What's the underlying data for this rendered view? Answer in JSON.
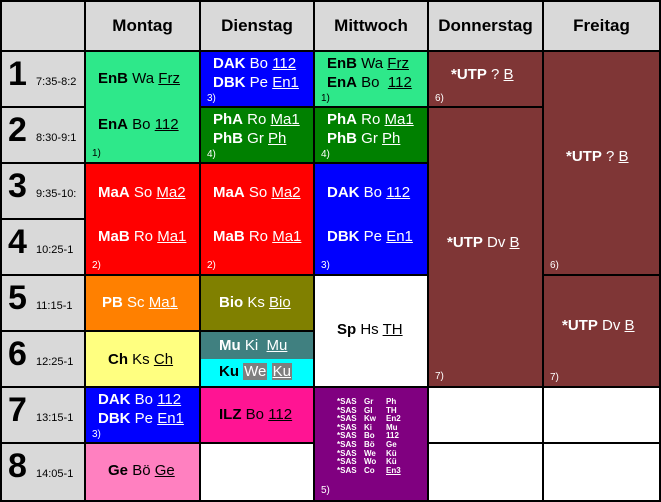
{
  "days": [
    "Montag",
    "Dienstag",
    "Mittwoch",
    "Donnerstag",
    "Freitag"
  ],
  "periods": [
    {
      "num": "1",
      "time": "7:35-8:2"
    },
    {
      "num": "2",
      "time": "8:30-9:1"
    },
    {
      "num": "3",
      "time": "9:35-10:"
    },
    {
      "num": "4",
      "time": "10:25-1"
    },
    {
      "num": "5",
      "time": "11:15-1"
    },
    {
      "num": "6",
      "time": "12:25-1"
    },
    {
      "num": "7",
      "time": "13:15-1"
    },
    {
      "num": "8",
      "time": "14:05-1"
    }
  ],
  "colors": {
    "mint": "#2ee88a",
    "blue": "#0000ff",
    "green": "#008000",
    "red": "#ff0000",
    "maroon": "#7f3636",
    "orange": "#ff8000",
    "olive": "#808000",
    "yellow": "#ffff80",
    "teal": "#408080",
    "cyan": "#00ffff",
    "magenta": "#ff1493",
    "purple": "#800080",
    "pink": "#ff80c0",
    "white": "#ffffff",
    "header": "#d9d9d9"
  },
  "cells": {
    "mo12": {
      "l1": {
        "subj": "EnB",
        "teacher": "Wa",
        "room": "Frz"
      },
      "l2": {
        "subj": "EnA",
        "teacher": "Bo",
        "room": "112"
      },
      "note": "1)"
    },
    "mo34": {
      "l1": {
        "subj": "MaA",
        "teacher": "So",
        "room": "Ma2"
      },
      "l2": {
        "subj": "MaB",
        "teacher": "Ro",
        "room": "Ma1"
      },
      "note": "2)"
    },
    "mo5": {
      "l1": {
        "subj": "PB",
        "teacher": "Sc",
        "room": "Ma1"
      }
    },
    "mo6": {
      "l1": {
        "subj": "Ch",
        "teacher": "Ks",
        "room": "Ch"
      }
    },
    "mo7": {
      "l1": {
        "subj": "DAK",
        "teacher": "Bo",
        "room": "112"
      },
      "l2": {
        "subj": "DBK",
        "teacher": "Pe",
        "room": "En1"
      },
      "note": "3)"
    },
    "mo8": {
      "l1": {
        "subj": "Ge",
        "teacher": "Bö",
        "room": "Ge"
      }
    },
    "di1": {
      "l1": {
        "subj": "DAK",
        "teacher": "Bo",
        "room": "112"
      },
      "l2": {
        "subj": "DBK",
        "teacher": "Pe",
        "room": "En1"
      },
      "note": "3)"
    },
    "di2": {
      "l1": {
        "subj": "PhA",
        "teacher": "Ro",
        "room": "Ma1"
      },
      "l2": {
        "subj": "PhB",
        "teacher": "Gr",
        "room": "Ph"
      },
      "note": "4)"
    },
    "di34": {
      "l1": {
        "subj": "MaA",
        "teacher": "So",
        "room": "Ma2"
      },
      "l2": {
        "subj": "MaB",
        "teacher": "Ro",
        "room": "Ma1"
      },
      "note": "2)"
    },
    "di5": {
      "l1": {
        "subj": "Bio",
        "teacher": "Ks",
        "room": "Bio"
      }
    },
    "di6a": {
      "l1": {
        "subj": "Mu",
        "teacher": "Ki",
        "room": "Mu"
      }
    },
    "di6b": {
      "l1": {
        "subj": "Ku",
        "teacher": "We",
        "room": "Ku"
      }
    },
    "di7": {
      "l1": {
        "subj": "ILZ",
        "teacher": "Bo",
        "room": "112"
      }
    },
    "mi1": {
      "l1": {
        "subj": "EnB",
        "teacher": "Wa",
        "room": "Frz"
      },
      "l2": {
        "subj": "EnA",
        "teacher": "Bo",
        "room": "112"
      },
      "note": "1)"
    },
    "mi2": {
      "l1": {
        "subj": "PhA",
        "teacher": "Ro",
        "room": "Ma1"
      },
      "l2": {
        "subj": "PhB",
        "teacher": "Gr",
        "room": "Ph"
      },
      "note": "4)"
    },
    "mi34": {
      "l1": {
        "subj": "DAK",
        "teacher": "Bo",
        "room": "112"
      },
      "l2": {
        "subj": "DBK",
        "teacher": "Pe",
        "room": "En1"
      },
      "note": "3)"
    },
    "mi56": {
      "l1": {
        "subj": "Sp",
        "teacher": "Hs",
        "room": "TH"
      }
    },
    "mi78": {
      "rows": [
        {
          "subj": "*SAS",
          "teacher": "Gr",
          "room": "Ph"
        },
        {
          "subj": "*SAS",
          "teacher": "Gl",
          "room": "TH"
        },
        {
          "subj": "*SAS",
          "teacher": "Kw",
          "room": "En2"
        },
        {
          "subj": "*SAS",
          "teacher": "Ki",
          "room": "Mu"
        },
        {
          "subj": "*SAS",
          "teacher": "Bo",
          "room": "112"
        },
        {
          "subj": "*SAS",
          "teacher": "Bö",
          "room": "Ge"
        },
        {
          "subj": "*SAS",
          "teacher": "We",
          "room": "Kü"
        },
        {
          "subj": "*SAS",
          "teacher": "Wo",
          "room": "Kü"
        },
        {
          "subj": "*SAS",
          "teacher": "Co",
          "room": "En3"
        }
      ],
      "note": "5)"
    },
    "do1": {
      "l1": {
        "subj": "*UTP",
        "teacher": "?",
        "room": "B"
      },
      "note": "6)"
    },
    "do26": {
      "l1": {
        "subj": "*UTP",
        "teacher": "Dv",
        "room": "B"
      },
      "note": "7)"
    },
    "fr14": {
      "l1": {
        "subj": "*UTP",
        "teacher": "?",
        "room": "B"
      },
      "note": "6)"
    },
    "fr56": {
      "l1": {
        "subj": "*UTP",
        "teacher": "Dv",
        "room": "B"
      },
      "note": "7)"
    }
  }
}
